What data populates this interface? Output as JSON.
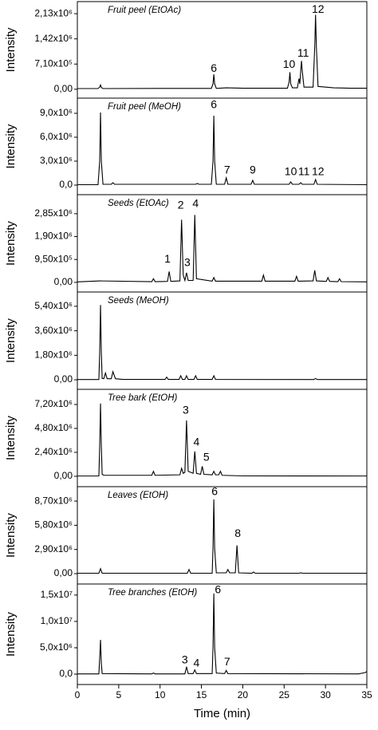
{
  "chart_data": [
    {
      "type": "line",
      "title": "Fruit peel (EtOAc)",
      "ylabel": "Intensity",
      "color": "#000000",
      "annotation_color": "#d0021b",
      "xlim": [
        0,
        35
      ],
      "ylim": [
        -250000,
        2470000
      ],
      "yticks": [
        {
          "value": 0,
          "label": "0,00"
        },
        {
          "value": 710000,
          "label": "7,10x10⁵"
        },
        {
          "value": 1420000,
          "label": "1,42x10⁶"
        },
        {
          "value": 2130000,
          "label": "2,13x10⁶"
        }
      ],
      "x": [
        0,
        2.5,
        2.7,
        2.8,
        2.9,
        3.1,
        10,
        16.2,
        16.4,
        16.5,
        16.6,
        16.8,
        18,
        20,
        25.4,
        25.6,
        25.7,
        25.8,
        26,
        26.6,
        26.8,
        26.9,
        27.0,
        27.1,
        27.2,
        27.4,
        28.5,
        28.7,
        28.8,
        28.9,
        29.1,
        31,
        33,
        35
      ],
      "values": [
        20000,
        20000,
        60000,
        120000,
        50000,
        20000,
        25000,
        25000,
        150000,
        420000,
        150000,
        25000,
        40000,
        30000,
        30000,
        200000,
        480000,
        150000,
        40000,
        40000,
        300000,
        150000,
        500000,
        800000,
        500000,
        60000,
        60000,
        1200000,
        2100000,
        1200000,
        80000,
        40000,
        30000,
        30000
      ],
      "annotations": [
        {
          "text": "6",
          "x": 16.5,
          "y": 570000
        },
        {
          "text": "10",
          "x": 25.6,
          "y": 690000
        },
        {
          "text": "11",
          "x": 27.3,
          "y": 1000000
        },
        {
          "text": "12",
          "x": 29.1,
          "y": 2240000
        }
      ]
    },
    {
      "type": "line",
      "title": "Fruit peel (MeOH)",
      "ylabel": "Intensity",
      "color": "#000000",
      "annotation_color": "#d0021b",
      "xlim": [
        0,
        35
      ],
      "ylim": [
        -1200000,
        10900000
      ],
      "yticks": [
        {
          "value": 0,
          "label": "0,0"
        },
        {
          "value": 3000000,
          "label": "3,0x10⁶"
        },
        {
          "value": 6000000,
          "label": "6,0x10⁶"
        },
        {
          "value": 9000000,
          "label": "9,0x10⁶"
        }
      ],
      "x": [
        0,
        2.5,
        2.7,
        2.8,
        2.9,
        3.1,
        4.1,
        4.3,
        4.5,
        14.3,
        14.5,
        14.7,
        16.2,
        16.4,
        16.5,
        16.6,
        16.8,
        17.8,
        18.0,
        18.2,
        21.0,
        21.2,
        21.4,
        25.6,
        25.8,
        26.0,
        26.8,
        27.0,
        27.2,
        28.6,
        28.8,
        29.0,
        35
      ],
      "values": [
        50000,
        50000,
        3000000,
        9100000,
        3000000,
        100000,
        100000,
        300000,
        100000,
        100000,
        200000,
        100000,
        100000,
        3000000,
        8700000,
        3000000,
        100000,
        100000,
        900000,
        100000,
        100000,
        600000,
        100000,
        100000,
        400000,
        100000,
        100000,
        300000,
        100000,
        100000,
        700000,
        100000,
        50000
      ],
      "annotations": [
        {
          "text": "6",
          "x": 16.5,
          "y": 10000000
        },
        {
          "text": "7",
          "x": 18.1,
          "y": 1800000
        },
        {
          "text": "9",
          "x": 21.2,
          "y": 1800000
        },
        {
          "text": "10",
          "x": 25.8,
          "y": 1600000
        },
        {
          "text": "11",
          "x": 27.4,
          "y": 1600000
        },
        {
          "text": "12",
          "x": 29.1,
          "y": 1600000
        }
      ]
    },
    {
      "type": "line",
      "title": "Seeds (EtOAc)",
      "ylabel": "Intensity",
      "color": "#000000",
      "annotation_color": "#d0021b",
      "xlim": [
        0,
        35
      ],
      "ylim": [
        -400000,
        3640000
      ],
      "yticks": [
        {
          "value": 0,
          "label": "0,00"
        },
        {
          "value": 950000,
          "label": "9,50x10⁵"
        },
        {
          "value": 1900000,
          "label": "1,90x10⁶"
        },
        {
          "value": 2850000,
          "label": "2,85x10⁶"
        }
      ],
      "x": [
        0,
        2.8,
        9.0,
        9.2,
        9.4,
        10.9,
        11.1,
        11.3,
        12.4,
        12.6,
        12.8,
        13.0,
        13.2,
        13.4,
        14.0,
        14.2,
        14.4,
        16.3,
        16.5,
        16.7,
        22.3,
        22.5,
        22.7,
        26.3,
        26.5,
        26.7,
        28.5,
        28.7,
        28.9,
        30.1,
        30.3,
        30.5,
        31.5,
        31.7,
        31.9,
        35
      ],
      "values": [
        20000,
        60000,
        30000,
        150000,
        30000,
        40000,
        450000,
        40000,
        60000,
        2600000,
        300000,
        80000,
        400000,
        80000,
        80000,
        2800000,
        150000,
        50000,
        200000,
        50000,
        50000,
        300000,
        50000,
        50000,
        250000,
        50000,
        60000,
        500000,
        60000,
        40000,
        200000,
        40000,
        30000,
        150000,
        30000,
        20000
      ],
      "annotations": [
        {
          "text": "1",
          "x": 10.9,
          "y": 950000
        },
        {
          "text": "2",
          "x": 12.5,
          "y": 3180000
        },
        {
          "text": "3",
          "x": 13.3,
          "y": 800000
        },
        {
          "text": "4",
          "x": 14.3,
          "y": 3250000
        }
      ]
    },
    {
      "type": "line",
      "title": "Seeds (MeOH)",
      "ylabel": "Intensity",
      "color": "#000000",
      "annotation_color": "#d0021b",
      "xlim": [
        0,
        35
      ],
      "ylim": [
        -700000,
        6450000
      ],
      "yticks": [
        {
          "value": 0,
          "label": "0,00"
        },
        {
          "value": 1800000,
          "label": "1,80x10⁶"
        },
        {
          "value": 3600000,
          "label": "3,60x10⁶"
        },
        {
          "value": 5400000,
          "label": "5,40x10⁶"
        }
      ],
      "x": [
        0,
        2.6,
        2.7,
        2.8,
        2.9,
        3.0,
        3.2,
        3.4,
        3.6,
        4.1,
        4.3,
        4.6,
        5.5,
        10.6,
        10.8,
        11.0,
        12.3,
        12.5,
        12.7,
        13.0,
        13.2,
        13.4,
        14.1,
        14.3,
        14.5,
        16.3,
        16.5,
        16.7,
        28.6,
        28.8,
        29.0,
        35
      ],
      "values": [
        20000,
        20000,
        2000000,
        5500000,
        2000000,
        100000,
        80000,
        500000,
        80000,
        80000,
        600000,
        80000,
        30000,
        30000,
        200000,
        30000,
        30000,
        300000,
        30000,
        30000,
        300000,
        30000,
        30000,
        300000,
        30000,
        30000,
        300000,
        30000,
        20000,
        100000,
        20000,
        20000
      ],
      "annotations": []
    },
    {
      "type": "line",
      "title": "Tree bark (EtOH)",
      "ylabel": "Intensity",
      "color": "#000000",
      "annotation_color": "#d0021b",
      "xlim": [
        0,
        35
      ],
      "ylim": [
        -1040000,
        8720000
      ],
      "yticks": [
        {
          "value": 0,
          "label": "0,00"
        },
        {
          "value": 2400000,
          "label": "2,40x10⁶"
        },
        {
          "value": 4800000,
          "label": "4,80x10⁶"
        },
        {
          "value": 7200000,
          "label": "7,20x10⁶"
        }
      ],
      "x": [
        0,
        2.6,
        2.7,
        2.8,
        2.9,
        3.0,
        3.2,
        9.0,
        9.2,
        9.4,
        12.4,
        12.6,
        12.8,
        13.0,
        13.2,
        13.4,
        14.0,
        14.2,
        14.4,
        14.9,
        15.1,
        15.3,
        16.3,
        16.5,
        16.7,
        17.1,
        17.3,
        17.5,
        20,
        35
      ],
      "values": [
        30000,
        30000,
        3000000,
        7300000,
        3000000,
        200000,
        100000,
        100000,
        500000,
        100000,
        150000,
        800000,
        300000,
        400000,
        5600000,
        500000,
        300000,
        2500000,
        300000,
        200000,
        1000000,
        200000,
        150000,
        500000,
        150000,
        150000,
        500000,
        100000,
        40000,
        30000
      ],
      "annotations": [
        {
          "text": "3",
          "x": 13.1,
          "y": 6560000
        },
        {
          "text": "4",
          "x": 14.4,
          "y": 3360000
        },
        {
          "text": "5",
          "x": 15.6,
          "y": 1850000
        }
      ]
    },
    {
      "type": "line",
      "title": "Leaves (EtOH)",
      "ylabel": "Intensity",
      "color": "#000000",
      "annotation_color": "#d0021b",
      "xlim": [
        0,
        35
      ],
      "ylim": [
        -1240000,
        10430000
      ],
      "yticks": [
        {
          "value": 0,
          "label": "0,00"
        },
        {
          "value": 2900000,
          "label": "2,90x10⁶"
        },
        {
          "value": 5800000,
          "label": "5,80x10⁶"
        },
        {
          "value": 8700000,
          "label": "8,70x10⁶"
        }
      ],
      "x": [
        0,
        2.6,
        2.8,
        3.0,
        13.3,
        13.5,
        13.7,
        16.3,
        16.4,
        16.5,
        16.6,
        16.8,
        18.0,
        18.2,
        18.4,
        19.1,
        19.3,
        19.5,
        21.1,
        21.3,
        21.5,
        26.8,
        27.0,
        27.2,
        35
      ],
      "values": [
        50000,
        50000,
        600000,
        50000,
        50000,
        500000,
        50000,
        50000,
        3000000,
        8900000,
        3000000,
        100000,
        100000,
        500000,
        100000,
        100000,
        3400000,
        100000,
        50000,
        200000,
        50000,
        50000,
        100000,
        50000,
        50000
      ],
      "annotations": [
        {
          "text": "6",
          "x": 16.6,
          "y": 9800000
        },
        {
          "text": "8",
          "x": 19.4,
          "y": 4780000
        }
      ]
    },
    {
      "type": "line",
      "title": "Tree branches (EtOH)",
      "ylabel": "Intensity",
      "xlabel": "Time (min)",
      "color": "#000000",
      "annotation_color": "#d0021b",
      "xlim": [
        0,
        35
      ],
      "ylim": [
        -1970000,
        17100000
      ],
      "xticks": [
        0,
        5,
        10,
        15,
        20,
        25,
        30,
        35
      ],
      "yticks": [
        {
          "value": 0,
          "label": "0,0"
        },
        {
          "value": 5000000,
          "label": "5,0x10⁶"
        },
        {
          "value": 10000000,
          "label": "1,0x10⁷"
        },
        {
          "value": 15000000,
          "label": "1,5x10⁷"
        }
      ],
      "x": [
        0,
        2.6,
        2.7,
        2.8,
        2.9,
        3.0,
        9.0,
        9.2,
        9.4,
        13.0,
        13.2,
        13.4,
        14.0,
        14.2,
        14.4,
        16.3,
        16.4,
        16.5,
        16.6,
        16.8,
        17.8,
        18.0,
        18.2,
        34,
        34.8,
        35
      ],
      "values": [
        50000,
        50000,
        3000000,
        6500000,
        2000000,
        100000,
        50000,
        200000,
        50000,
        50000,
        1400000,
        100000,
        100000,
        800000,
        100000,
        100000,
        5000000,
        15300000,
        5000000,
        200000,
        100000,
        700000,
        100000,
        50000,
        300000,
        500000
      ],
      "annotations": [
        {
          "text": "3",
          "x": 13.0,
          "y": 2600000
        },
        {
          "text": "4",
          "x": 14.4,
          "y": 2000000
        },
        {
          "text": "6",
          "x": 17.0,
          "y": 15900000
        },
        {
          "text": "7",
          "x": 18.1,
          "y": 2200000
        }
      ]
    }
  ]
}
